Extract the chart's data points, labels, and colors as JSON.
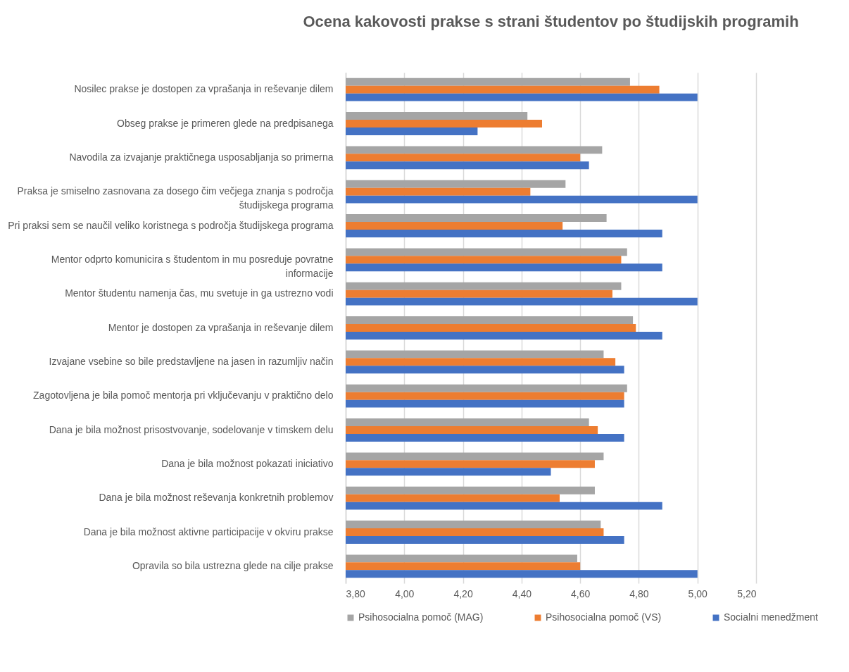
{
  "chart_data": {
    "type": "bar",
    "orientation": "horizontal",
    "title": "Ocena kakovosti prakse s strani študentov po študijskih programih",
    "categories": [
      "Nosilec prakse je dostopen za vprašanja in reševanje dilem",
      "Obseg prakse je primeren glede na predpisanega",
      "Navodila za izvajanje praktičnega usposabljanja so primerna",
      "Praksa je smiselno zasnovana za dosego čim večjega znanja s področja študijskega programa",
      "Pri praksi sem se naučil veliko koristnega s področja študijskega programa",
      "Mentor odprto komunicira s študentom in mu posreduje povratne informacije",
      "Mentor študentu namenja čas, mu svetuje in ga ustrezno vodi",
      "Mentor je dostopen za vprašanja in reševanje dilem",
      "Izvajane vsebine so bile predstavljene na jasen in razumljiv način",
      "Zagotovljena je bila pomoč mentorja pri vključevanju v praktično delo",
      "Dana je bila možnost prisostvovanje, sodelovanje v timskem delu",
      "Dana je bila možnost pokazati iniciativo",
      "Dana je bila možnost reševanja konkretnih problemov",
      "Dana je bila možnost aktivne participacije v okviru prakse",
      "Opravila so bila ustrezna glede na cilje prakse"
    ],
    "series": [
      {
        "name": "Psihosocialna pomoč (MAG)",
        "color": "#a5a5a5",
        "values": [
          4.77,
          4.42,
          4.675,
          4.55,
          4.69,
          4.76,
          4.74,
          4.78,
          4.68,
          4.76,
          4.63,
          4.68,
          4.65,
          4.67,
          4.59
        ]
      },
      {
        "name": "Psihosocialna pomoč (VS)",
        "color": "#ed7d31",
        "values": [
          4.87,
          4.47,
          4.6,
          4.43,
          4.54,
          4.74,
          4.71,
          4.79,
          4.72,
          4.75,
          4.66,
          4.65,
          4.53,
          4.68,
          4.6
        ]
      },
      {
        "name": "Socialni menedžment",
        "color": "#4472c4",
        "values": [
          5.0,
          4.25,
          4.63,
          5.0,
          4.88,
          4.88,
          5.0,
          4.88,
          4.75,
          4.75,
          4.75,
          4.5,
          4.88,
          4.75,
          5.0
        ]
      }
    ],
    "xlim": [
      3.8,
      5.2
    ],
    "xticks": [
      {
        "value": 3.8,
        "label": "3,80"
      },
      {
        "value": 4.0,
        "label": "4,00"
      },
      {
        "value": 4.2,
        "label": "4,20"
      },
      {
        "value": 4.4,
        "label": "4,40"
      },
      {
        "value": 4.6,
        "label": "4,60"
      },
      {
        "value": 4.8,
        "label": "4,80"
      },
      {
        "value": 5.0,
        "label": "5,00"
      },
      {
        "value": 5.2,
        "label": "5,20"
      }
    ],
    "grid": "x",
    "legend": "bottom"
  }
}
